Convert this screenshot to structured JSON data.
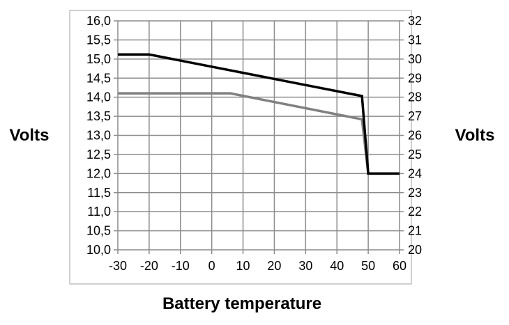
{
  "chart_data": {
    "type": "line",
    "xlabel": "Battery temperature",
    "ylabel": "Volts",
    "ylabel_right": "Volts",
    "xlim": [
      -30,
      60
    ],
    "ylim": [
      10.0,
      16.0
    ],
    "ylim_right": [
      20,
      32
    ],
    "x_ticks": [
      "-30",
      "-20",
      "-10",
      "0",
      "10",
      "20",
      "30",
      "40",
      "50",
      "60"
    ],
    "y_ticks": [
      "10,0",
      "10,5",
      "11,0",
      "11,5",
      "12,0",
      "12,5",
      "13,0",
      "13,5",
      "14,0",
      "14,5",
      "15,0",
      "15,5",
      "16,0"
    ],
    "y_ticks_right": [
      "20",
      "21",
      "22",
      "23",
      "24",
      "25",
      "26",
      "27",
      "28",
      "29",
      "30",
      "31",
      "32"
    ],
    "grid": true,
    "series": [
      {
        "color": "#000000",
        "points": [
          [
            -30,
            15.12
          ],
          [
            -20,
            15.12
          ],
          [
            48,
            14.03
          ],
          [
            50,
            12.0
          ],
          [
            60,
            12.0
          ]
        ]
      },
      {
        "color": "#808080",
        "points": [
          [
            -30,
            14.1
          ],
          [
            6,
            14.1
          ],
          [
            48,
            13.42
          ],
          [
            50,
            12.0
          ],
          [
            60,
            12.0
          ]
        ]
      }
    ]
  }
}
